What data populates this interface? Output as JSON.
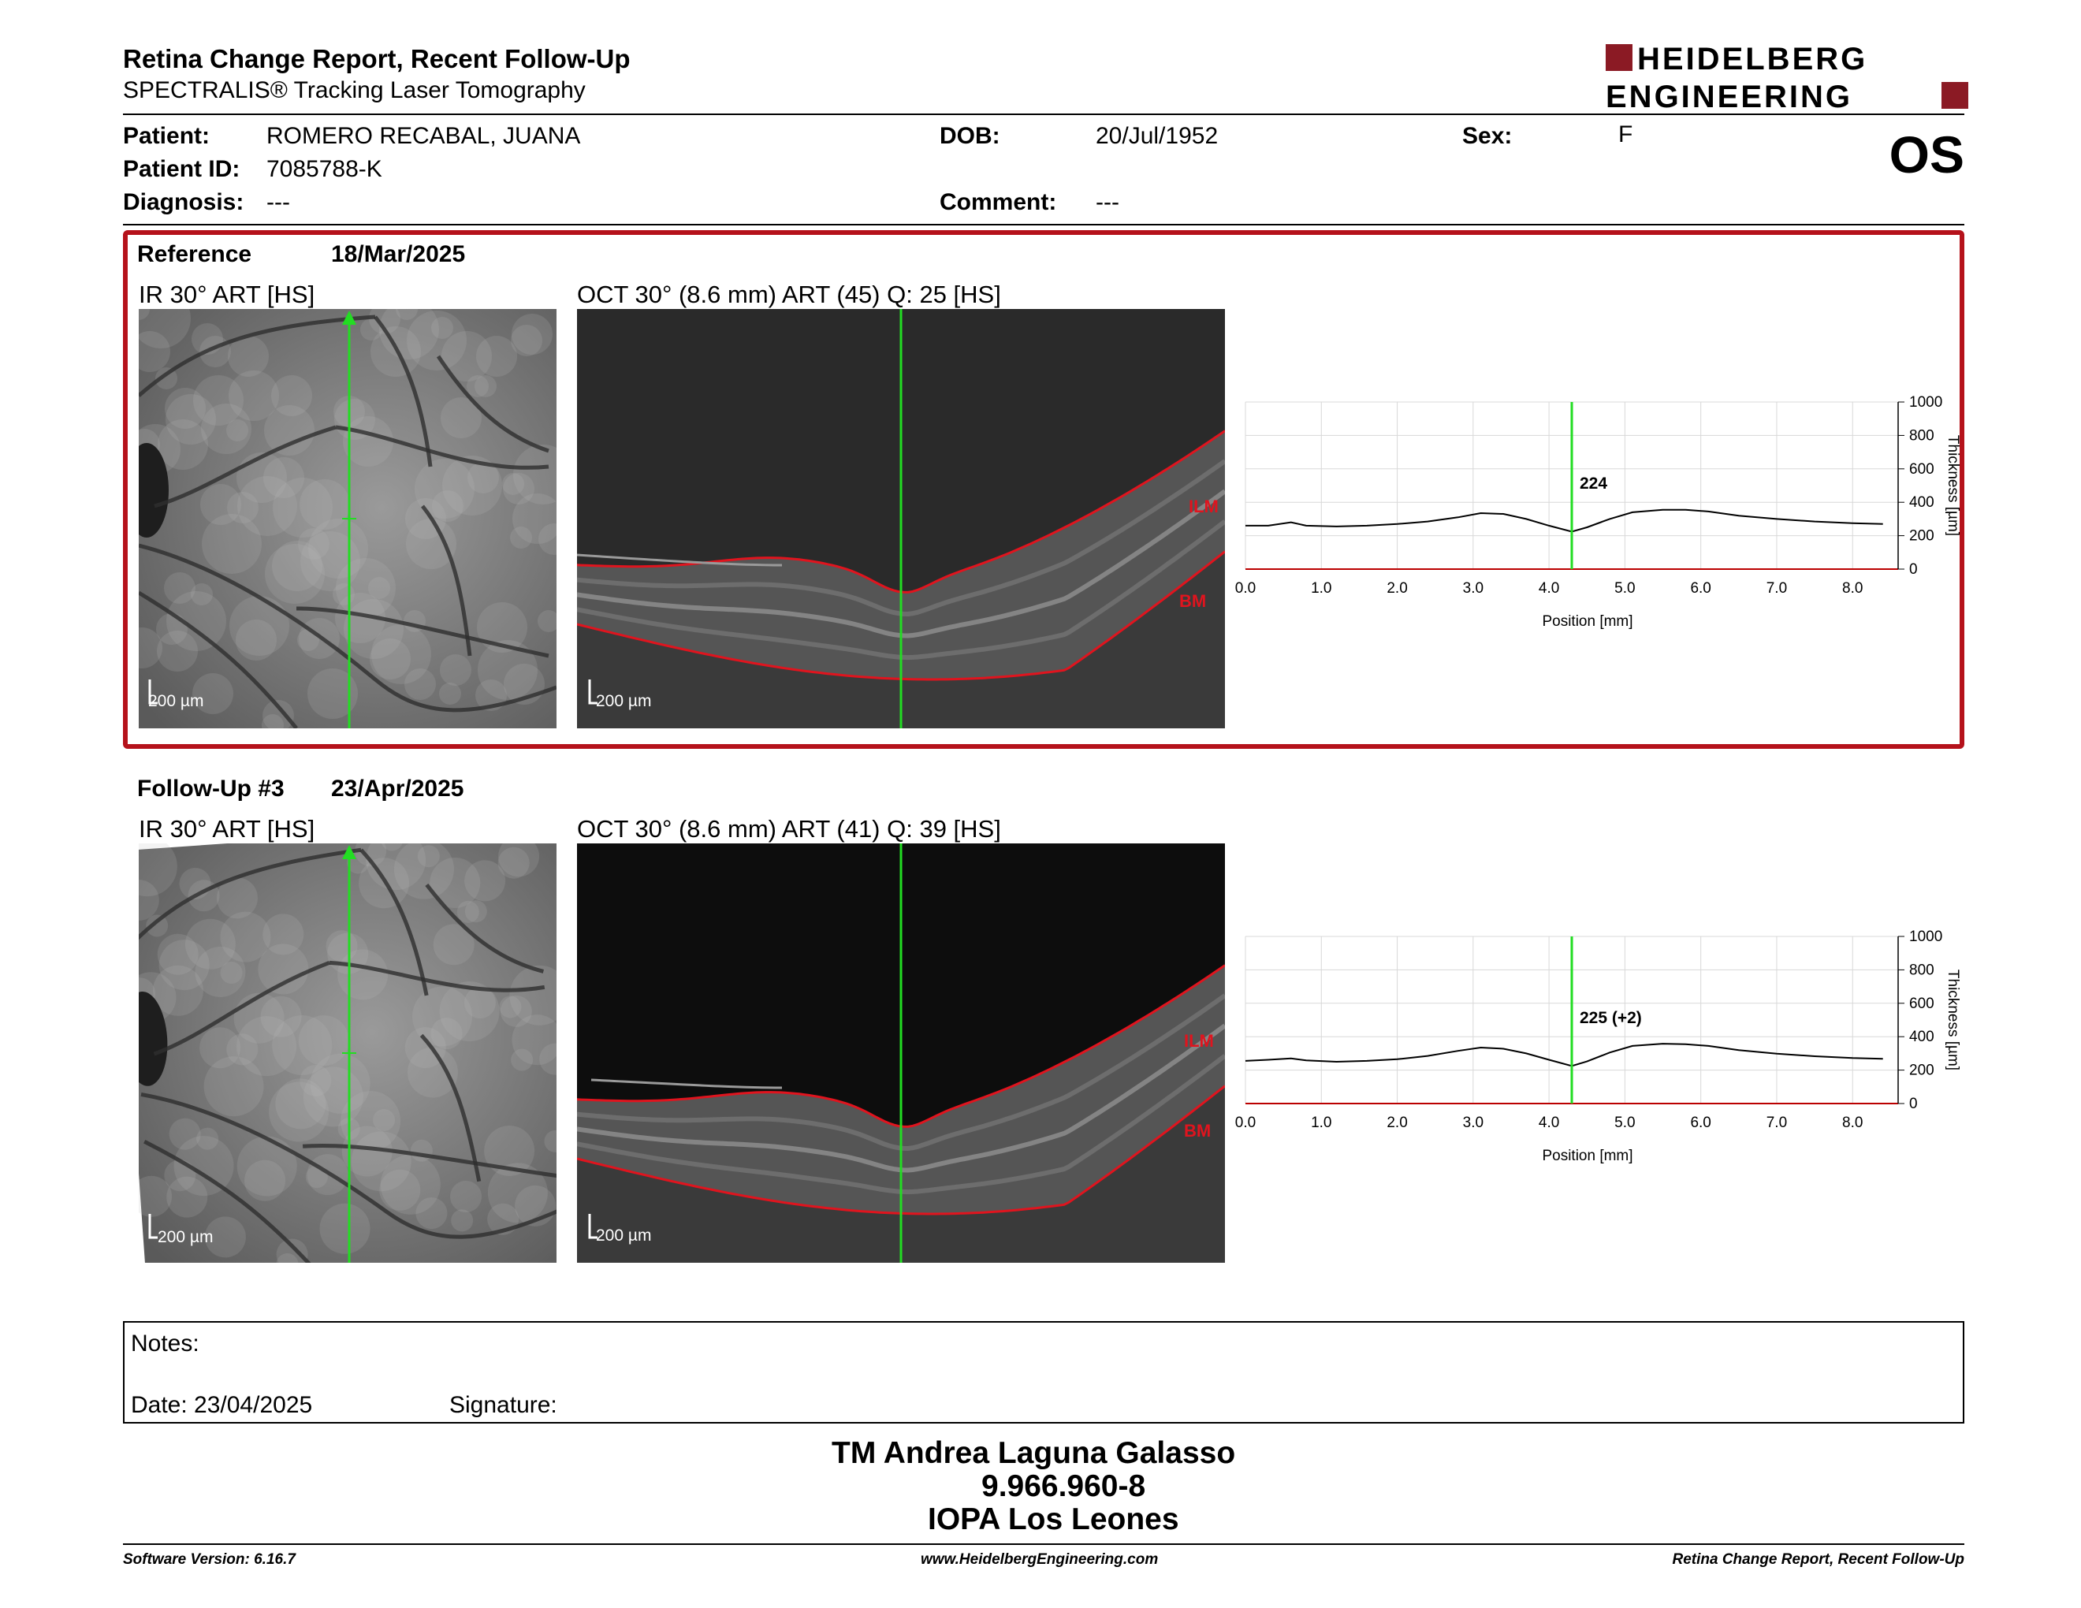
{
  "header": {
    "title": "Retina Change Report, Recent Follow-Up",
    "subtitle": "SPECTRALIS® Tracking Laser Tomography",
    "logo_line1": "HEIDELBERG",
    "logo_line2": "ENGINEERING",
    "eye": "OS"
  },
  "patient": {
    "name_label": "Patient:",
    "name": "ROMERO RECABAL, JUANA",
    "id_label": "Patient ID:",
    "id": "7085788-K",
    "diag_label": "Diagnosis:",
    "diag": "---",
    "dob_label": "DOB:",
    "dob": "20/Jul/1952",
    "comment_label": "Comment:",
    "comment": "---",
    "sex_label": "Sex:",
    "sex": "F"
  },
  "exams": [
    {
      "title": "Reference",
      "date": "18/Mar/2025",
      "ir_caption": "IR 30° ART [HS]",
      "oct_caption": "OCT 30° (8.6 mm) ART (45) Q: 25 [HS]",
      "scale": "200 µm",
      "ilm": "ILM",
      "bm": "BM",
      "value_label": "224"
    },
    {
      "title": "Follow-Up #3",
      "date": "23/Apr/2025",
      "ir_caption": "IR 30° ART [HS]",
      "oct_caption": "OCT 30° (8.6 mm) ART (41) Q: 39 [HS]",
      "scale": "200 µm",
      "ilm": "ILM",
      "bm": "BM",
      "value_label": "225 (+2)"
    }
  ],
  "chart_data": [
    {
      "type": "line",
      "xlabel": "Position [mm]",
      "ylabel": "Thickness [µm]",
      "xlim": [
        0,
        8.6
      ],
      "ylim": [
        0,
        1000
      ],
      "x_ticks": [
        "0.0",
        "1.0",
        "2.0",
        "3.0",
        "4.0",
        "5.0",
        "6.0",
        "7.0",
        "8.0"
      ],
      "y_ticks": [
        "0",
        "200",
        "400",
        "600",
        "800",
        "1000"
      ],
      "marker_x": 4.3,
      "marker_label": "224",
      "x": [
        0.0,
        0.3,
        0.6,
        0.8,
        1.2,
        1.6,
        2.0,
        2.4,
        2.8,
        3.1,
        3.4,
        3.7,
        4.0,
        4.3,
        4.5,
        4.8,
        5.1,
        5.5,
        5.8,
        6.1,
        6.5,
        7.0,
        7.5,
        8.0,
        8.4
      ],
      "y": [
        260,
        260,
        280,
        260,
        255,
        260,
        270,
        285,
        310,
        335,
        330,
        300,
        260,
        224,
        250,
        300,
        340,
        355,
        355,
        345,
        320,
        300,
        285,
        275,
        270
      ]
    },
    {
      "type": "line",
      "xlabel": "Position [mm]",
      "ylabel": "Thickness [µm]",
      "xlim": [
        0,
        8.6
      ],
      "ylim": [
        0,
        1000
      ],
      "x_ticks": [
        "0.0",
        "1.0",
        "2.0",
        "3.0",
        "4.0",
        "5.0",
        "6.0",
        "7.0",
        "8.0"
      ],
      "y_ticks": [
        "0",
        "200",
        "400",
        "600",
        "800",
        "1000"
      ],
      "marker_x": 4.3,
      "marker_label": "225 (+2)",
      "x": [
        0.0,
        0.3,
        0.6,
        0.8,
        1.2,
        1.6,
        2.0,
        2.4,
        2.8,
        3.1,
        3.4,
        3.7,
        4.0,
        4.3,
        4.5,
        4.8,
        5.1,
        5.5,
        5.8,
        6.1,
        6.5,
        7.0,
        7.5,
        8.0,
        8.4
      ],
      "y": [
        255,
        262,
        270,
        258,
        250,
        255,
        265,
        285,
        315,
        335,
        328,
        300,
        262,
        225,
        252,
        305,
        345,
        358,
        355,
        345,
        320,
        298,
        283,
        272,
        268
      ]
    }
  ],
  "notes": {
    "label": "Notes:",
    "date_label": "Date: 23/04/2025",
    "signature_label": "Signature:"
  },
  "signer": {
    "name": "TM Andrea Laguna Galasso",
    "rut": "9.966.960-8",
    "institution": "IOPA Los Leones"
  },
  "footer": {
    "left": "Software Version: 6.16.7",
    "center": "www.HeidelbergEngineering.com",
    "right": "Retina Change Report, Recent Follow-Up"
  },
  "colors": {
    "accent_red": "#b5121b",
    "scan_green": "#22dd22",
    "layer_red": "#e0141e"
  }
}
